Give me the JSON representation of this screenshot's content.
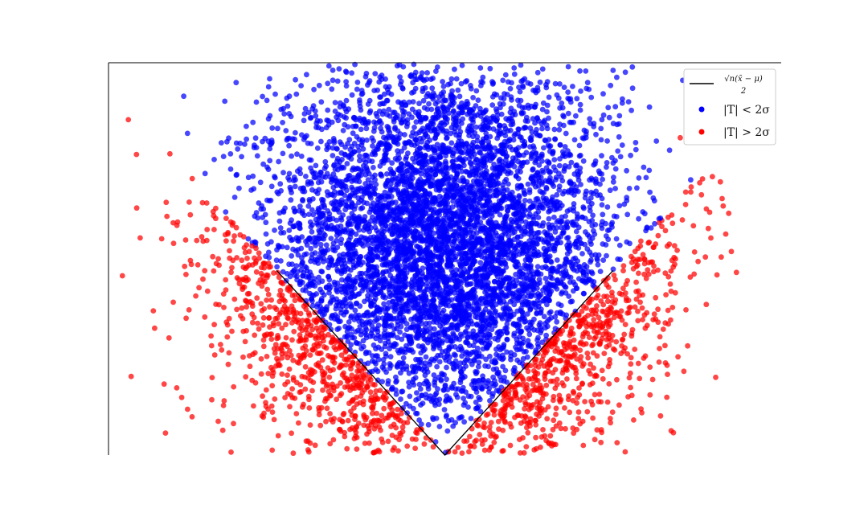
{
  "chart_data": {
    "type": "scatter",
    "title": "",
    "xlabel": "",
    "ylabel": "",
    "xlim": [
      -6,
      6
    ],
    "ylim": [
      -3.2,
      3.6
    ],
    "grid": false,
    "legend_position": "top-right",
    "colors": {
      "inside": "#0000ff",
      "outside": "#ff0000",
      "boundary": "#000000"
    },
    "boundary": {
      "name": "√n(x̄ − μ) / 2",
      "numerator": "√n(x̄ − μ)",
      "denominator": "2",
      "x": [
        -3,
        0,
        3
      ],
      "y": [
        0.0,
        -3.2,
        0.0
      ]
    },
    "series": [
      {
        "name": "|T| < 2σ",
        "key": "inside",
        "count": 6000,
        "center": [
          0,
          0.45
        ],
        "spread": [
          1.55,
          1.55
        ]
      },
      {
        "name": "|T| > 2σ",
        "key": "outside",
        "count": 1600,
        "center": [
          0,
          0.45
        ],
        "spread": [
          1.55,
          1.55
        ]
      }
    ],
    "outliers": [
      {
        "x": -5.2,
        "y": -0.7,
        "key": "outside"
      },
      {
        "x": 5.0,
        "y": 2.4,
        "key": "outside"
      },
      {
        "x": 4.2,
        "y": 2.3,
        "key": "outside"
      },
      {
        "x": 3.5,
        "y": -2.4,
        "key": "outside"
      }
    ]
  }
}
